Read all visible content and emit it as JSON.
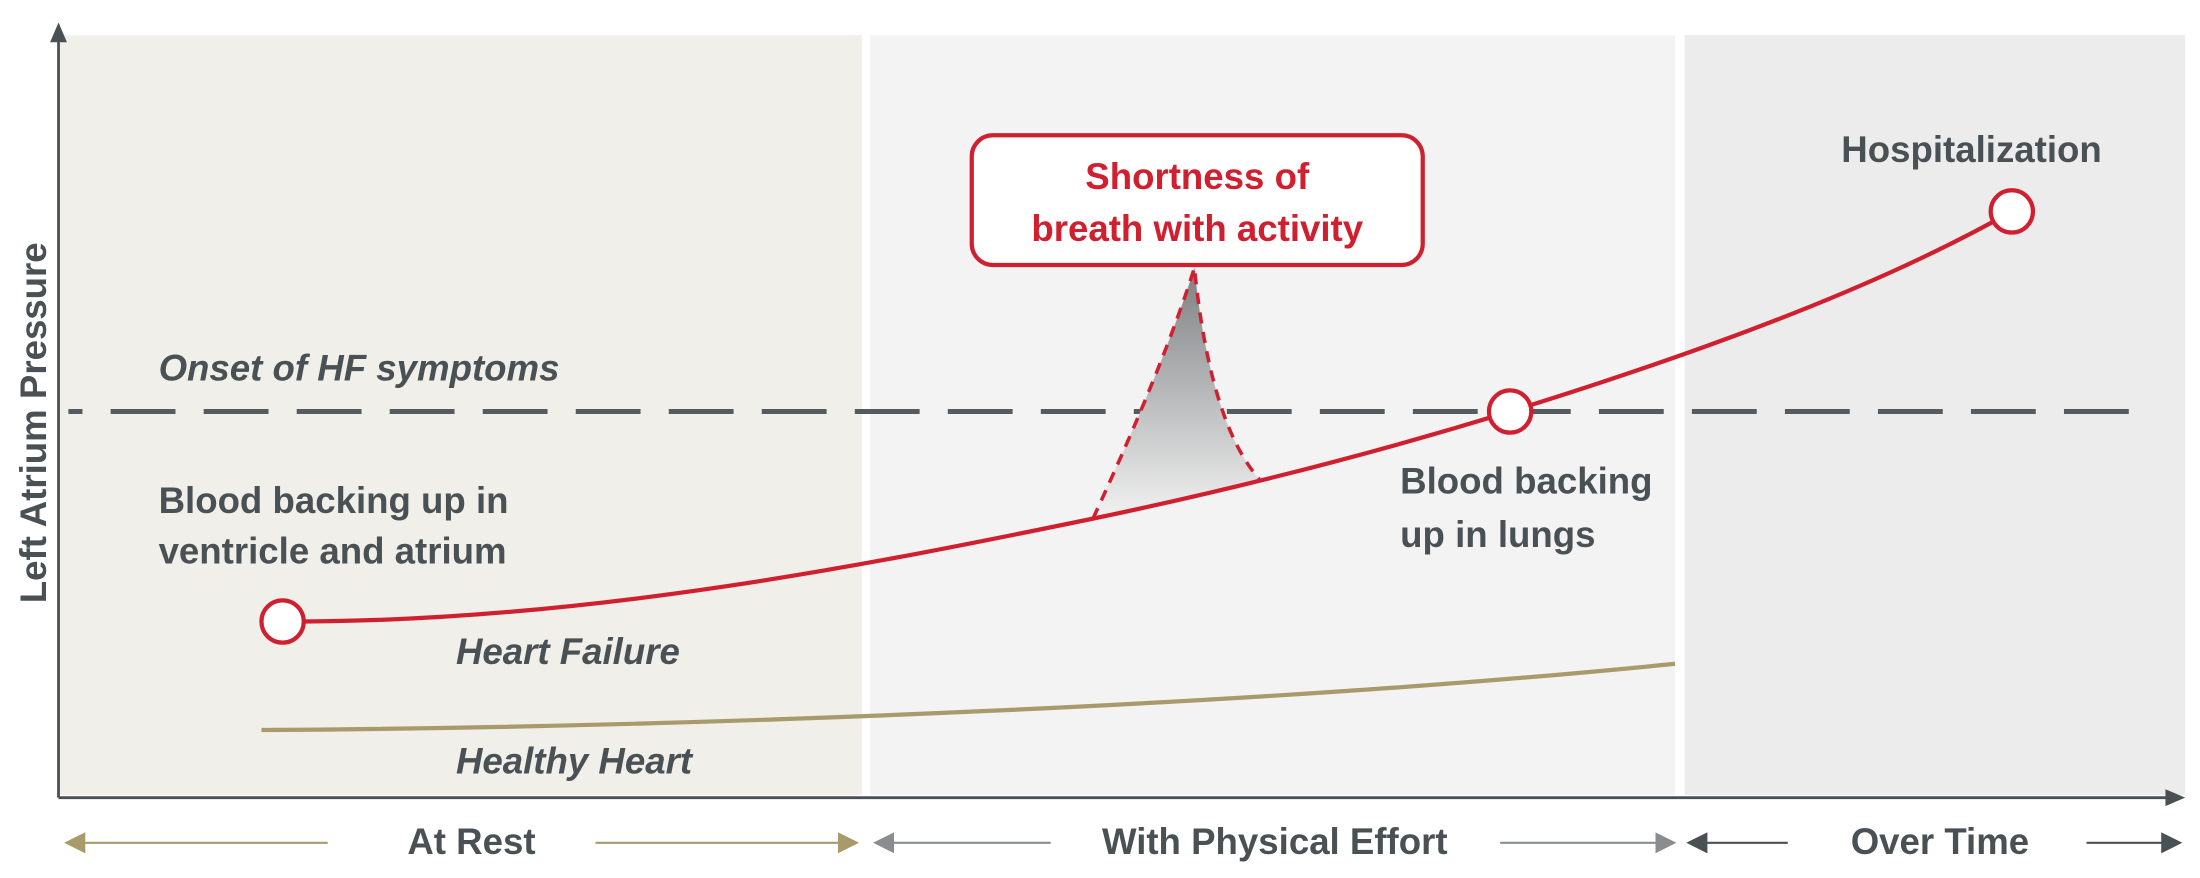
{
  "axes": {
    "y_label": "Left Atrium Pressure"
  },
  "threshold": {
    "label": "Onset of HF symptoms"
  },
  "annotations": {
    "ventricle": [
      "Blood backing up in",
      "ventricle and atrium"
    ],
    "lungs": [
      "Blood backing",
      "up in lungs"
    ],
    "hospitalization": "Hospitalization",
    "callout": [
      "Shortness of",
      "breath with activity"
    ]
  },
  "series": {
    "heart_failure": "Heart Failure",
    "healthy_heart": "Healthy Heart"
  },
  "phases": [
    {
      "label": "At Rest",
      "bg": "#f0efea",
      "arrow_color": "#a89a6a"
    },
    {
      "label": "With Physical Effort",
      "bg": "#f3f3f3",
      "arrow_color": "#8a8d8f"
    },
    {
      "label": "Over Time",
      "bg": "#ececec",
      "arrow_color": "#4a5155"
    }
  ],
  "colors": {
    "heart_failure": "#d0202f",
    "healthy_heart": "#a89a6a",
    "text": "#4a5155",
    "threshold": "#555b5e"
  }
}
